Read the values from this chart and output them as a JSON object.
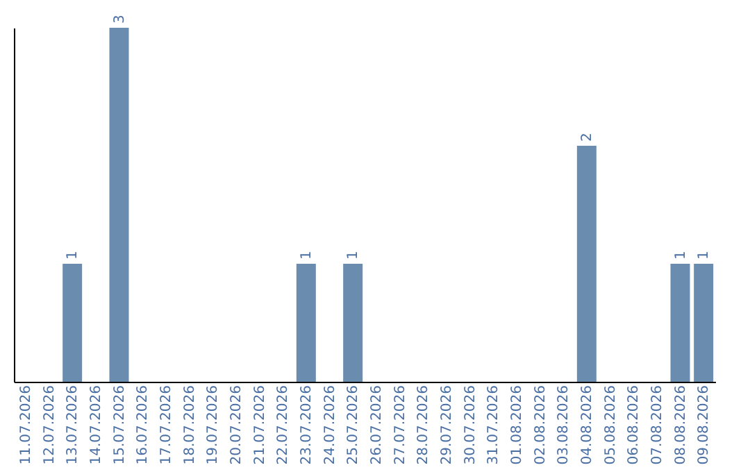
{
  "chart_data": {
    "type": "bar",
    "categories": [
      "11.07.2026",
      "12.07.2026",
      "13.07.2026",
      "14.07.2026",
      "15.07.2026",
      "16.07.2026",
      "17.07.2026",
      "18.07.2026",
      "19.07.2026",
      "20.07.2026",
      "21.07.2026",
      "22.07.2026",
      "23.07.2026",
      "24.07.2026",
      "25.07.2026",
      "26.07.2026",
      "27.07.2026",
      "28.07.2026",
      "29.07.2026",
      "30.07.2026",
      "31.07.2026",
      "01.08.2026",
      "02.08.2026",
      "03.08.2026",
      "04.08.2026",
      "05.08.2026",
      "06.08.2026",
      "07.08.2026",
      "08.08.2026",
      "09.08.2026"
    ],
    "values": [
      0,
      0,
      1,
      0,
      3,
      0,
      0,
      0,
      0,
      0,
      0,
      0,
      1,
      0,
      1,
      0,
      0,
      0,
      0,
      0,
      0,
      0,
      0,
      0,
      2,
      0,
      0,
      0,
      1,
      1
    ],
    "value_labels": [
      null,
      null,
      "1",
      null,
      "3",
      null,
      null,
      null,
      null,
      null,
      null,
      null,
      "1",
      null,
      "1",
      null,
      null,
      null,
      null,
      null,
      null,
      null,
      null,
      null,
      "2",
      null,
      null,
      null,
      "1",
      "1"
    ],
    "color": "#6a8caf",
    "tick_labels": "x",
    "grid": false
  }
}
